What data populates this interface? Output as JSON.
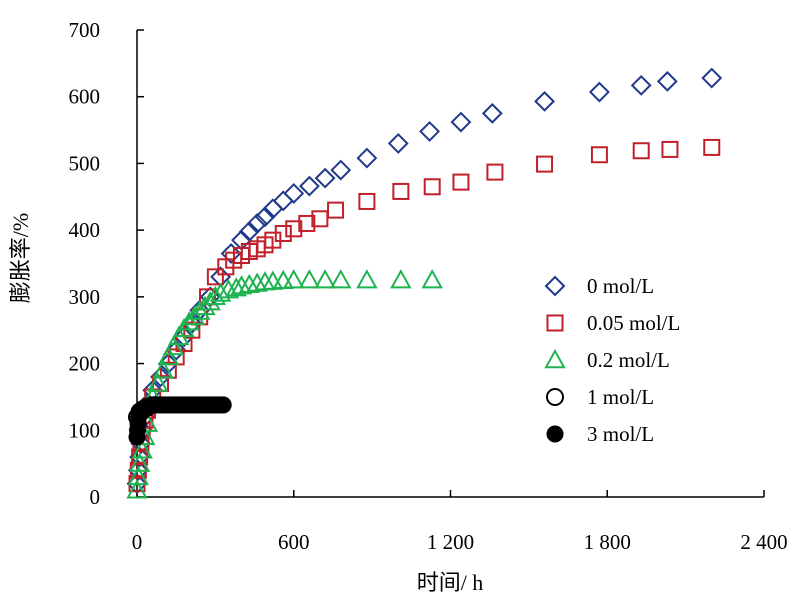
{
  "chart_data": {
    "type": "scatter",
    "xlabel": "时间/ h",
    "ylabel": "膨胀率/%",
    "xlim": [
      0,
      2400
    ],
    "ylim": [
      0,
      700
    ],
    "x_ticks": [
      {
        "value": 0,
        "label": "0"
      },
      {
        "value": 600,
        "label": "600"
      },
      {
        "value": 1200,
        "label": "1 200"
      },
      {
        "value": 1800,
        "label": "1 800"
      },
      {
        "value": 2400,
        "label": "2 400"
      }
    ],
    "y_ticks": [
      {
        "value": 0,
        "label": "0"
      },
      {
        "value": 100,
        "label": "100"
      },
      {
        "value": 200,
        "label": "200"
      },
      {
        "value": 300,
        "label": "300"
      },
      {
        "value": 400,
        "label": "400"
      },
      {
        "value": 500,
        "label": "500"
      },
      {
        "value": 600,
        "label": "600"
      },
      {
        "value": 700,
        "label": "700"
      }
    ],
    "grid": false,
    "legend_position": "right",
    "series": [
      {
        "name": "0 mol/L",
        "marker": "diamond-open",
        "color": "#1f3a8a",
        "x": [
          0,
          5,
          10,
          15,
          20,
          30,
          40,
          60,
          90,
          120,
          150,
          180,
          210,
          240,
          280,
          320,
          360,
          400,
          430,
          460,
          490,
          520,
          560,
          600,
          660,
          720,
          780,
          880,
          1000,
          1120,
          1240,
          1360,
          1560,
          1770,
          1930,
          2030,
          2200
        ],
        "y": [
          20,
          40,
          60,
          80,
          100,
          120,
          140,
          160,
          180,
          200,
          220,
          240,
          260,
          280,
          300,
          330,
          365,
          385,
          398,
          410,
          420,
          432,
          444,
          455,
          466,
          478,
          490,
          508,
          530,
          548,
          562,
          575,
          593,
          607,
          617,
          623,
          628
        ]
      },
      {
        "name": "0.05 mol/L",
        "marker": "square-open",
        "color": "#c0202a",
        "x": [
          0,
          5,
          10,
          15,
          20,
          30,
          40,
          60,
          90,
          120,
          150,
          180,
          210,
          240,
          270,
          300,
          340,
          370,
          400,
          430,
          460,
          490,
          520,
          560,
          600,
          650,
          700,
          760,
          880,
          1010,
          1130,
          1240,
          1370,
          1560,
          1770,
          1930,
          2040,
          2200
        ],
        "y": [
          20,
          40,
          60,
          80,
          100,
          115,
          130,
          150,
          170,
          190,
          210,
          230,
          250,
          270,
          300,
          330,
          345,
          355,
          362,
          368,
          372,
          378,
          385,
          395,
          402,
          410,
          417,
          430,
          443,
          458,
          465,
          472,
          487,
          499,
          513,
          519,
          521,
          524
        ]
      },
      {
        "name": "0.2 mol/L",
        "marker": "triangle-open",
        "color": "#1db34f",
        "x": [
          0,
          5,
          10,
          20,
          30,
          40,
          60,
          80,
          100,
          120,
          140,
          160,
          180,
          200,
          220,
          240,
          260,
          280,
          300,
          320,
          350,
          380,
          400,
          430,
          460,
          490,
          520,
          560,
          600,
          660,
          720,
          780,
          880,
          1010,
          1130
        ],
        "y": [
          10,
          30,
          50,
          70,
          90,
          110,
          150,
          170,
          190,
          210,
          225,
          240,
          252,
          262,
          270,
          278,
          285,
          292,
          300,
          305,
          310,
          313,
          316,
          318,
          320,
          322,
          323,
          324,
          325,
          325,
          325,
          325,
          325,
          325,
          325
        ]
      },
      {
        "name": "1 mol/L",
        "marker": "circle-open",
        "color": "#000000",
        "x": [
          0,
          10,
          20,
          30,
          40
        ],
        "y": [
          120,
          128,
          130,
          132,
          134
        ]
      },
      {
        "name": "3 mol/L",
        "marker": "circle-filled",
        "color": "#000000",
        "x": [
          0,
          2,
          4,
          6,
          8,
          10,
          15,
          20,
          30,
          40,
          50,
          60,
          70,
          80,
          90,
          100,
          110,
          120,
          130,
          140,
          150,
          160,
          170,
          180,
          190,
          200,
          210,
          220,
          230,
          240,
          250,
          260,
          270,
          280,
          290,
          300,
          310,
          320,
          330
        ],
        "y": [
          90,
          100,
          110,
          120,
          125,
          128,
          130,
          132,
          134,
          136,
          137,
          138,
          138,
          138,
          138,
          138,
          138,
          138,
          138,
          138,
          138,
          138,
          138,
          138,
          138,
          138,
          138,
          138,
          138,
          138,
          138,
          138,
          138,
          138,
          138,
          138,
          138,
          138,
          138
        ]
      }
    ]
  }
}
